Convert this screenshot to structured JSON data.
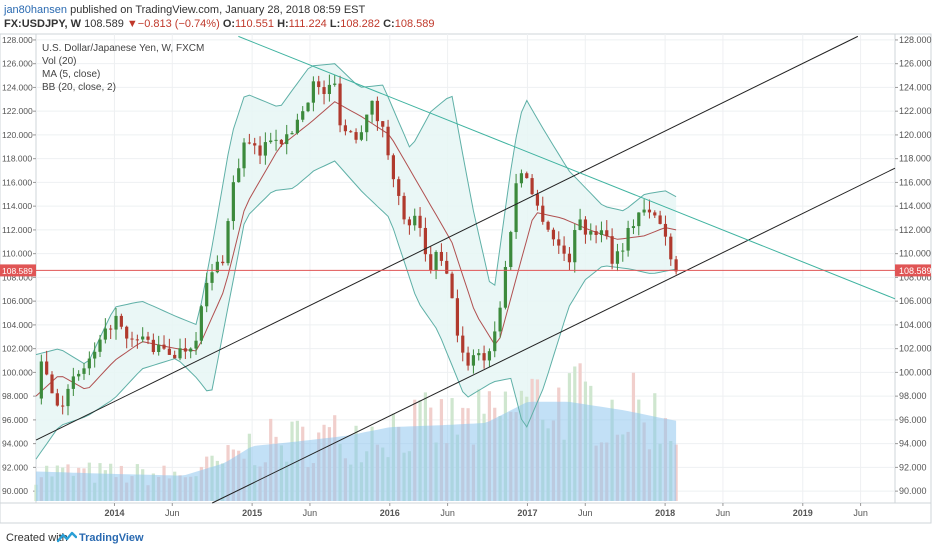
{
  "header": {
    "author": "jan80hansen",
    "published_text": "published on TradingView.com, January 28, 2018 08:59 EST",
    "symbol": "FX:USDJPY, W",
    "last": "108.589",
    "change_arrow": "▼",
    "change": "−0.813 (−0.74%)",
    "o_label": "O:",
    "o_value": "110.551",
    "h_label": "H:",
    "h_value": "111.224",
    "l_label": "L:",
    "l_value": "108.282",
    "c_label": "C:",
    "c_value": "108.589"
  },
  "legend": {
    "title": "U.S. Dollar/Japanese Yen, W, FXCM",
    "line1": "Vol (20)",
    "line2": "MA (5, close)",
    "line3": "BB (20, close, 2)"
  },
  "footer": {
    "created": "Created with",
    "brand": "TradingView"
  },
  "colors": {
    "up": "#3c8a3c",
    "down": "#b03a2e",
    "bb_band": "#5fb0a7",
    "bb_fill": "#e6f6f4",
    "ma": "#b05050",
    "trend_teal": "#3fb3a0",
    "channel": "#222222",
    "price_line": "#e05555",
    "volume_ma": "#8fc6ee"
  },
  "chart_data": {
    "type": "candlestick",
    "ylim": [
      89,
      128.5
    ],
    "yticks": [
      "90.000",
      "92.000",
      "94.000",
      "96.000",
      "98.000",
      "100.000",
      "102.000",
      "104.000",
      "106.000",
      "108.000",
      "110.000",
      "112.000",
      "114.000",
      "116.000",
      "118.000",
      "120.000",
      "122.000",
      "124.000",
      "126.000",
      "128.000"
    ],
    "xticks": [
      {
        "label": "2014",
        "x": 2014.0
      },
      {
        "label": "Jun",
        "x": 2014.42
      },
      {
        "label": "2015",
        "x": 2015.0
      },
      {
        "label": "Jun",
        "x": 2015.42
      },
      {
        "label": "2016",
        "x": 2016.0
      },
      {
        "label": "Jun",
        "x": 2016.42
      },
      {
        "label": "2017",
        "x": 2017.0
      },
      {
        "label": "Jun",
        "x": 2017.42
      },
      {
        "label": "2018",
        "x": 2018.0
      },
      {
        "label": "Jun",
        "x": 2018.42
      },
      {
        "label": "2019",
        "x": 2019.0
      },
      {
        "label": "Jun",
        "x": 2019.42
      }
    ],
    "xlim": [
      2013.43,
      2019.67
    ],
    "price_anchors": [
      [
        2013.43,
        97.8
      ],
      [
        2013.47,
        101.3
      ],
      [
        2013.55,
        98.2
      ],
      [
        2013.62,
        97.4
      ],
      [
        2013.72,
        99.5
      ],
      [
        2013.88,
        101.8
      ],
      [
        2014.0,
        104.8
      ],
      [
        2014.1,
        102.2
      ],
      [
        2014.2,
        103.0
      ],
      [
        2014.3,
        101.9
      ],
      [
        2014.45,
        101.6
      ],
      [
        2014.58,
        102.6
      ],
      [
        2014.68,
        107.8
      ],
      [
        2014.8,
        110.0
      ],
      [
        2014.85,
        115.3
      ],
      [
        2014.95,
        119.5
      ],
      [
        2015.05,
        118.2
      ],
      [
        2015.15,
        120.2
      ],
      [
        2015.25,
        119.5
      ],
      [
        2015.38,
        122.5
      ],
      [
        2015.45,
        124.5
      ],
      [
        2015.5,
        123.4
      ],
      [
        2015.6,
        124.2
      ],
      [
        2015.65,
        120.5
      ],
      [
        2015.78,
        120.0
      ],
      [
        2015.85,
        123.0
      ],
      [
        2015.95,
        120.3
      ],
      [
        2016.02,
        117.2
      ],
      [
        2016.1,
        112.5
      ],
      [
        2016.2,
        112.8
      ],
      [
        2016.28,
        108.5
      ],
      [
        2016.35,
        110.0
      ],
      [
        2016.45,
        106.8
      ],
      [
        2016.5,
        102.2
      ],
      [
        2016.55,
        100.6
      ],
      [
        2016.62,
        101.8
      ],
      [
        2016.7,
        101.2
      ],
      [
        2016.78,
        104.0
      ],
      [
        2016.85,
        109.5
      ],
      [
        2016.92,
        116.0
      ],
      [
        2016.98,
        117.5
      ],
      [
        2017.05,
        114.3
      ],
      [
        2017.12,
        113.0
      ],
      [
        2017.2,
        111.0
      ],
      [
        2017.3,
        109.5
      ],
      [
        2017.38,
        113.2
      ],
      [
        2017.45,
        111.3
      ],
      [
        2017.55,
        112.5
      ],
      [
        2017.62,
        109.5
      ],
      [
        2017.68,
        110.5
      ],
      [
        2017.75,
        112.2
      ],
      [
        2017.82,
        113.8
      ],
      [
        2017.88,
        113.2
      ],
      [
        2017.95,
        113.0
      ],
      [
        2018.02,
        110.8
      ],
      [
        2018.08,
        108.6
      ]
    ],
    "volume_ma_anchors": [
      [
        2013.43,
        0.14
      ],
      [
        2013.9,
        0.13
      ],
      [
        2014.5,
        0.12
      ],
      [
        2014.8,
        0.18
      ],
      [
        2015.0,
        0.26
      ],
      [
        2015.3,
        0.28
      ],
      [
        2015.7,
        0.31
      ],
      [
        2016.0,
        0.35
      ],
      [
        2016.4,
        0.36
      ],
      [
        2016.7,
        0.37
      ],
      [
        2017.0,
        0.47
      ],
      [
        2017.3,
        0.47
      ],
      [
        2017.7,
        0.43
      ],
      [
        2018.0,
        0.39
      ],
      [
        2018.08,
        0.38
      ]
    ],
    "bb_upper_anchors": [
      [
        2013.43,
        101.5
      ],
      [
        2013.6,
        102.0
      ],
      [
        2013.8,
        100.6
      ],
      [
        2014.0,
        105.5
      ],
      [
        2014.2,
        106.0
      ],
      [
        2014.45,
        104.7
      ],
      [
        2014.6,
        104.0
      ],
      [
        2014.7,
        110.0
      ],
      [
        2014.85,
        120.0
      ],
      [
        2014.95,
        123.5
      ],
      [
        2015.2,
        122.3
      ],
      [
        2015.42,
        125.8
      ],
      [
        2015.6,
        126.0
      ],
      [
        2015.78,
        124.0
      ],
      [
        2015.95,
        124.2
      ],
      [
        2016.15,
        118.8
      ],
      [
        2016.3,
        122.0
      ],
      [
        2016.45,
        123.4
      ],
      [
        2016.6,
        114.0
      ],
      [
        2016.75,
        106.3
      ],
      [
        2016.9,
        118.8
      ],
      [
        2016.98,
        123.2
      ],
      [
        2017.12,
        120.4
      ],
      [
        2017.3,
        117.0
      ],
      [
        2017.4,
        115.8
      ],
      [
        2017.55,
        114.0
      ],
      [
        2017.7,
        113.6
      ],
      [
        2017.85,
        115.0
      ],
      [
        2018.0,
        115.3
      ],
      [
        2018.08,
        114.8
      ]
    ],
    "bb_lower_anchors": [
      [
        2013.43,
        92.7
      ],
      [
        2013.6,
        95.5
      ],
      [
        2013.8,
        96.3
      ],
      [
        2014.0,
        97.8
      ],
      [
        2014.2,
        100.3
      ],
      [
        2014.45,
        101.2
      ],
      [
        2014.6,
        99.5
      ],
      [
        2014.7,
        98.0
      ],
      [
        2014.8,
        104.0
      ],
      [
        2014.95,
        113.0
      ],
      [
        2015.15,
        115.3
      ],
      [
        2015.3,
        115.5
      ],
      [
        2015.45,
        117.0
      ],
      [
        2015.6,
        117.8
      ],
      [
        2015.8,
        115.2
      ],
      [
        2016.0,
        113.0
      ],
      [
        2016.2,
        106.0
      ],
      [
        2016.35,
        103.5
      ],
      [
        2016.55,
        97.8
      ],
      [
        2016.75,
        99.2
      ],
      [
        2016.88,
        99.5
      ],
      [
        2016.98,
        95.0
      ],
      [
        2017.12,
        98.8
      ],
      [
        2017.3,
        105.5
      ],
      [
        2017.42,
        107.8
      ],
      [
        2017.55,
        109.0
      ],
      [
        2017.75,
        108.7
      ],
      [
        2017.9,
        108.3
      ],
      [
        2018.08,
        108.7
      ]
    ],
    "ma_anchors": [
      [
        2013.43,
        98.0
      ],
      [
        2013.6,
        99.8
      ],
      [
        2013.8,
        98.5
      ],
      [
        2014.0,
        101.0
      ],
      [
        2014.2,
        102.6
      ],
      [
        2014.45,
        102.0
      ],
      [
        2014.6,
        101.8
      ],
      [
        2014.8,
        107.0
      ],
      [
        2014.95,
        114.0
      ],
      [
        2015.2,
        119.0
      ],
      [
        2015.42,
        121.0
      ],
      [
        2015.6,
        122.8
      ],
      [
        2015.8,
        121.5
      ],
      [
        2016.0,
        120.0
      ],
      [
        2016.2,
        116.0
      ],
      [
        2016.45,
        111.0
      ],
      [
        2016.62,
        105.0
      ],
      [
        2016.78,
        102.0
      ],
      [
        2016.92,
        108.0
      ],
      [
        2017.05,
        113.5
      ],
      [
        2017.25,
        113.0
      ],
      [
        2017.45,
        112.0
      ],
      [
        2017.65,
        111.2
      ],
      [
        2017.85,
        111.5
      ],
      [
        2018.0,
        112.2
      ],
      [
        2018.08,
        112.0
      ]
    ],
    "trendlines": [
      {
        "name": "upper-channel",
        "x1": 2013.43,
        "y1": 94.3,
        "x2": 2019.4,
        "y2": 128.3,
        "color": "channel"
      },
      {
        "name": "lower-channel",
        "x1": 2014.71,
        "y1": 89.0,
        "x2": 2019.67,
        "y2": 117.2,
        "color": "channel"
      },
      {
        "name": "descending-resistance",
        "x1": 2014.9,
        "y1": 128.3,
        "x2": 2019.67,
        "y2": 106.2,
        "color": "trend_teal"
      }
    ],
    "last_price": 108.589,
    "last_price_label": "108.589"
  }
}
